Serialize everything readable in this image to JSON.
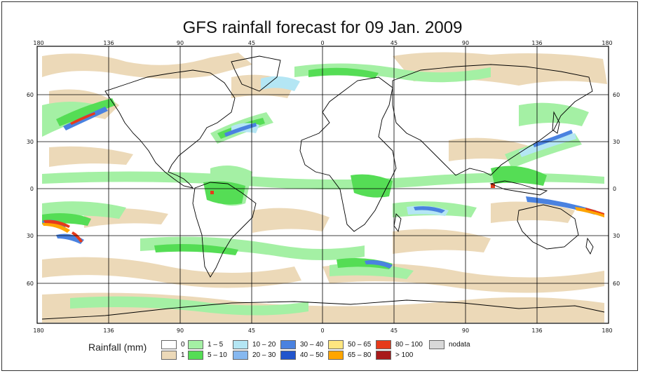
{
  "title": "GFS rainfall forecast for 09 Jan. 2009",
  "lon_labels": [
    "180",
    "136",
    "90",
    "45",
    "0",
    "45",
    "90",
    "136",
    "180"
  ],
  "lat_labels": [
    "60",
    "30",
    "0",
    "30",
    "60"
  ],
  "legend": {
    "title": "Rainfall (mm)",
    "classes": [
      {
        "label": "0",
        "color": "#ffffff"
      },
      {
        "label": "1",
        "color": "#ecd9b8"
      },
      {
        "label": "1 – 5",
        "color": "#a4f0a4"
      },
      {
        "label": "5 – 10",
        "color": "#55dd55"
      },
      {
        "label": "10 – 20",
        "color": "#b4e6f4"
      },
      {
        "label": "20 – 30",
        "color": "#86b8f0"
      },
      {
        "label": "30 – 40",
        "color": "#4a82e0"
      },
      {
        "label": "40 – 50",
        "color": "#2255cc"
      },
      {
        "label": "50 – 65",
        "color": "#ffe680"
      },
      {
        "label": "65 – 80",
        "color": "#ffa500"
      },
      {
        "label": "80 – 100",
        "color": "#e63a1a"
      },
      {
        "label": "> 100",
        "color": "#a81a1a"
      },
      {
        "label": "nodata",
        "color": "#d8d8d8"
      }
    ]
  },
  "colors": {
    "frame": "#333333",
    "coastline": "#000000",
    "grid": "#000000"
  }
}
